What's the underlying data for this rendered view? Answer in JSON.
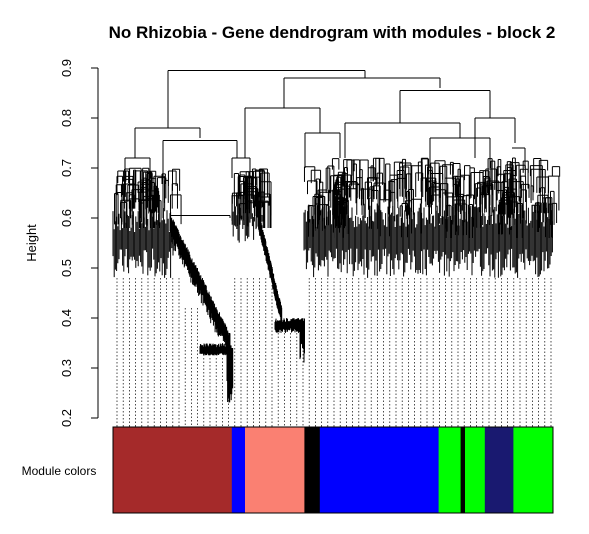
{
  "chart_data": {
    "type": "dendrogram",
    "title": "No Rhizobia - Gene dendrogram with modules - block 2",
    "ylabel": "Height",
    "ylim": [
      0.2,
      0.9
    ],
    "yticks": [
      0.2,
      0.3,
      0.4,
      0.5,
      0.6,
      0.7,
      0.8,
      0.9
    ],
    "colorbar_label": "Module colors",
    "module_colors": [
      {
        "color": "#a52a2a",
        "from": 0.0,
        "to": 0.27
      },
      {
        "color": "#0000ff",
        "from": 0.27,
        "to": 0.3
      },
      {
        "color": "#fa8072",
        "from": 0.3,
        "to": 0.435
      },
      {
        "color": "#000000",
        "from": 0.435,
        "to": 0.47
      },
      {
        "color": "#0000ff",
        "from": 0.47,
        "to": 0.74
      },
      {
        "color": "#00ff00",
        "from": 0.74,
        "to": 0.79
      },
      {
        "color": "#000000",
        "from": 0.79,
        "to": 0.8
      },
      {
        "color": "#00ff00",
        "from": 0.8,
        "to": 0.845
      },
      {
        "color": "#191970",
        "from": 0.845,
        "to": 0.91
      },
      {
        "color": "#00ff00",
        "from": 0.91,
        "to": 1.0
      }
    ]
  }
}
